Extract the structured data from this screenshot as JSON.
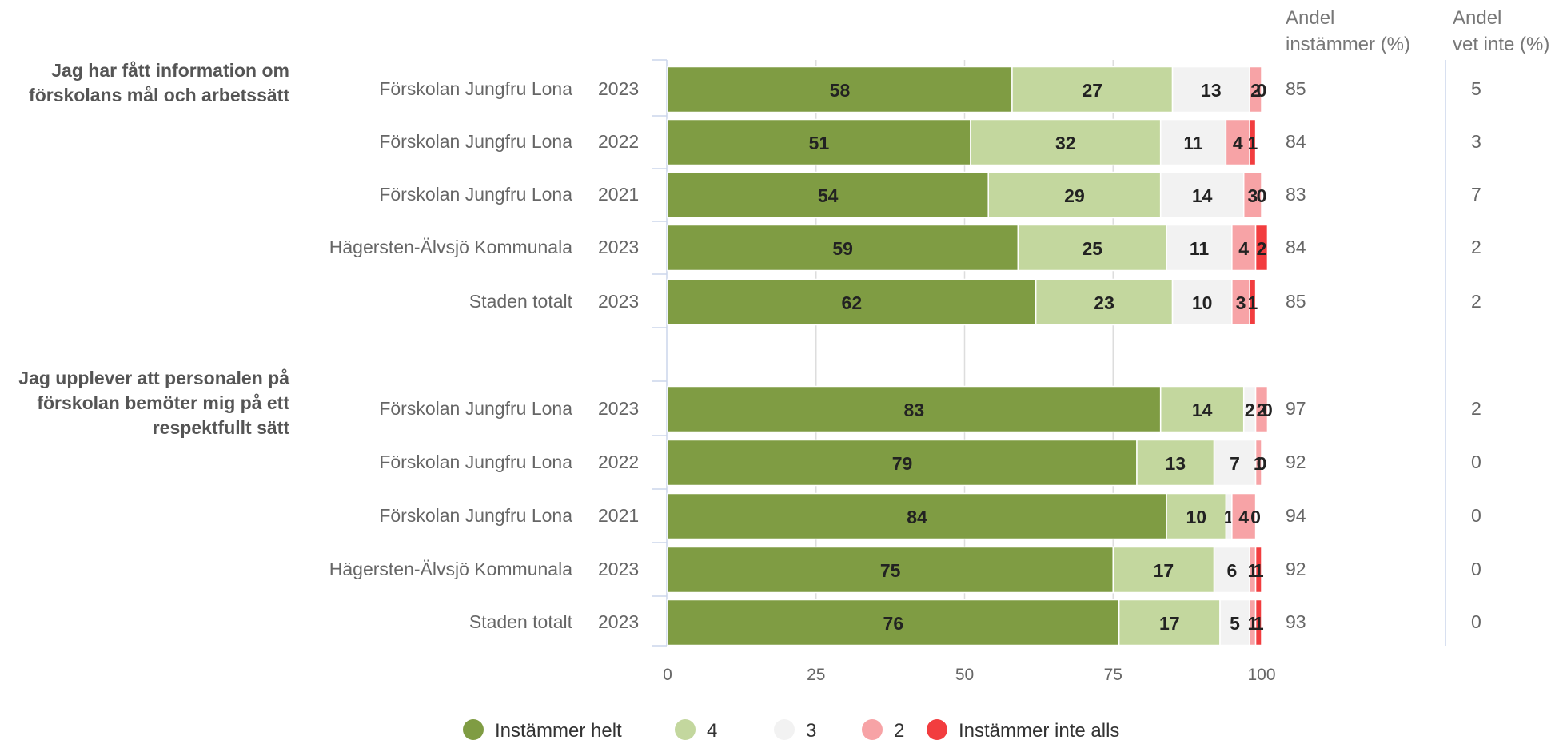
{
  "chart_data": {
    "type": "bar",
    "orientation": "horizontal",
    "stacked": true,
    "x_range": [
      0,
      100
    ],
    "x_ticks": [
      0,
      25,
      50,
      75,
      100
    ],
    "grid": "vertical",
    "legend_position": "bottom",
    "column_headers": [
      [
        "Andel",
        "instämmer (%)"
      ],
      [
        "Andel",
        "vet inte (%)"
      ]
    ],
    "series": [
      {
        "name": "Instämmer helt",
        "color": "#7f9c43"
      },
      {
        "name": "4",
        "color": "#c3d79e"
      },
      {
        "name": "3",
        "color": "#f2f2f2"
      },
      {
        "name": "2",
        "color": "#f7a3a6"
      },
      {
        "name": "Instämmer inte alls",
        "color": "#f23d3f"
      }
    ],
    "groups": [
      {
        "question": [
          "Jag har fått information om",
          "förskolans mål och arbetssätt"
        ],
        "rows": [
          {
            "unit": "Förskolan Jungfru Lona",
            "year": "2023",
            "values": [
              58,
              27,
              13,
              2,
              0
            ],
            "andel_instammer": 85,
            "andel_vet_inte": 5
          },
          {
            "unit": "Förskolan Jungfru Lona",
            "year": "2022",
            "values": [
              51,
              32,
              11,
              4,
              1
            ],
            "andel_instammer": 84,
            "andel_vet_inte": 3
          },
          {
            "unit": "Förskolan Jungfru Lona",
            "year": "2021",
            "values": [
              54,
              29,
              14,
              3,
              0
            ],
            "andel_instammer": 83,
            "andel_vet_inte": 7
          },
          {
            "unit": "Hägersten-Älvsjö Kommunala",
            "year": "2023",
            "values": [
              59,
              25,
              11,
              4,
              2
            ],
            "andel_instammer": 84,
            "andel_vet_inte": 2
          },
          {
            "unit": "Staden totalt",
            "year": "2023",
            "values": [
              62,
              23,
              10,
              3,
              1
            ],
            "andel_instammer": 85,
            "andel_vet_inte": 2
          }
        ]
      },
      {
        "question": [
          "Jag upplever att personalen på",
          "förskolan bemöter mig på ett",
          "respektfullt sätt"
        ],
        "rows": [
          {
            "unit": "Förskolan Jungfru Lona",
            "year": "2023",
            "values": [
              83,
              14,
              2,
              2,
              0
            ],
            "andel_instammer": 97,
            "andel_vet_inte": 2
          },
          {
            "unit": "Förskolan Jungfru Lona",
            "year": "2022",
            "values": [
              79,
              13,
              7,
              1,
              0
            ],
            "andel_instammer": 92,
            "andel_vet_inte": 0
          },
          {
            "unit": "Förskolan Jungfru Lona",
            "year": "2021",
            "values": [
              84,
              10,
              1,
              4,
              0
            ],
            "andel_instammer": 94,
            "andel_vet_inte": 0
          },
          {
            "unit": "Hägersten-Älvsjö Kommunala",
            "year": "2023",
            "values": [
              75,
              17,
              6,
              1,
              1
            ],
            "andel_instammer": 92,
            "andel_vet_inte": 0
          },
          {
            "unit": "Staden totalt",
            "year": "2023",
            "values": [
              76,
              17,
              5,
              1,
              1
            ],
            "andel_instammer": 93,
            "andel_vet_inte": 0
          }
        ]
      }
    ]
  }
}
